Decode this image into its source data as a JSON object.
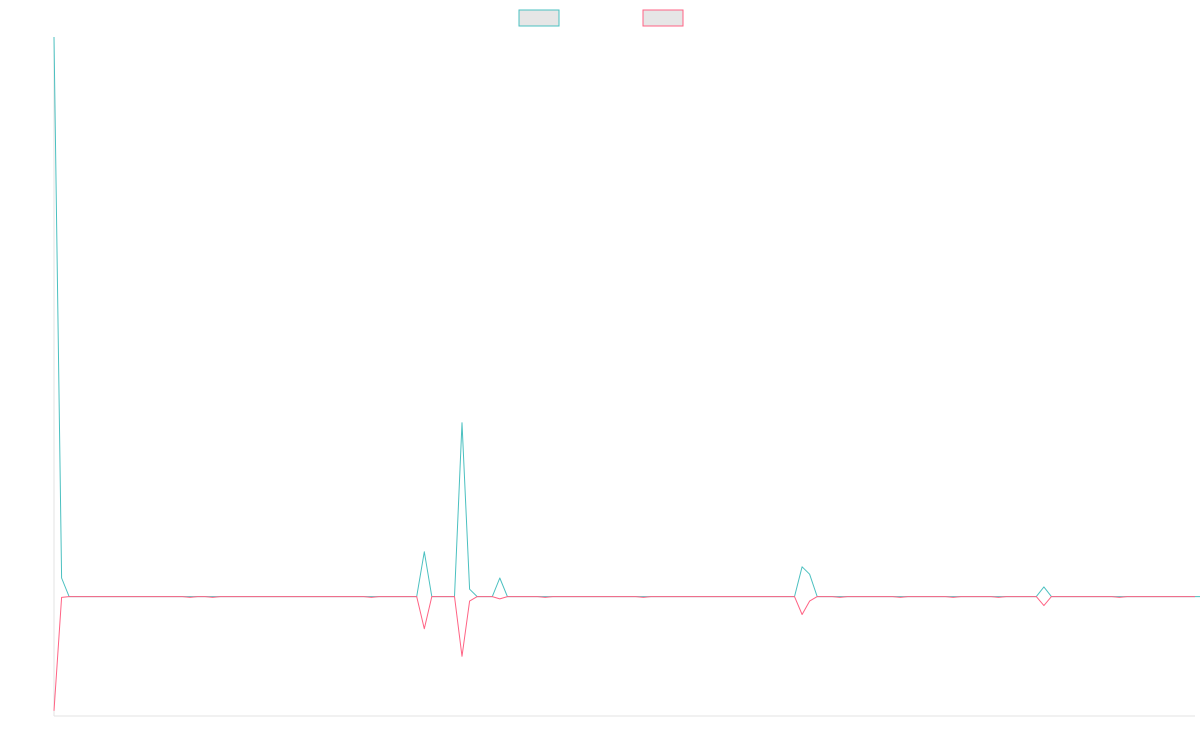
{
  "chart_data": {
    "type": "line",
    "title": "",
    "xlabel": "",
    "ylabel": "",
    "grid": false,
    "legend_position": "top-center",
    "ylim": [
      -16,
      75
    ],
    "x_count": 152,
    "series": [
      {
        "name": "",
        "color": "#4bc0c0",
        "fill": "#e6e6e6",
        "values": [
          75,
          2.5,
          0,
          0,
          0,
          0,
          0,
          0,
          0,
          0,
          0,
          0,
          0,
          0,
          0,
          0,
          0,
          0,
          0,
          0,
          0,
          0,
          0,
          0,
          0,
          0,
          0,
          0,
          0,
          0,
          0,
          0,
          0,
          0,
          0,
          0,
          0,
          0,
          0,
          0,
          0,
          0,
          0,
          0,
          0,
          0,
          0,
          0,
          0,
          6,
          0,
          0,
          0,
          0,
          23.3,
          1,
          0,
          0,
          0,
          2.5,
          0,
          0,
          0,
          0,
          0,
          0,
          0,
          0,
          0,
          0,
          0,
          0,
          0,
          0,
          0,
          0,
          0,
          0,
          0,
          0,
          0,
          0,
          0,
          0,
          0,
          0,
          0,
          0,
          0,
          0,
          0,
          0,
          0,
          0,
          0,
          0,
          0,
          0,
          0,
          4,
          3,
          0,
          0,
          0,
          0,
          0,
          0,
          0,
          0,
          0,
          0,
          0,
          0,
          0,
          0,
          0,
          0,
          0,
          0,
          0,
          0,
          0,
          0,
          0,
          0,
          0,
          0,
          0,
          0,
          0,
          0,
          1.3,
          0,
          0,
          0,
          0,
          0,
          0,
          0,
          0,
          0,
          0,
          0,
          0,
          0,
          0,
          0,
          0,
          0,
          0,
          0,
          0,
          0,
          0
        ]
      },
      {
        "name": "",
        "color": "#ff6384",
        "fill": "#e6e6e6",
        "values": [
          -15.3,
          -0.1,
          0,
          0,
          0,
          0,
          0,
          0,
          0,
          0,
          0,
          0,
          0,
          0,
          0,
          0,
          0,
          0,
          -0.1,
          0,
          0,
          -0.1,
          0,
          0,
          0,
          0,
          0,
          0,
          0,
          0,
          0,
          0,
          0,
          0,
          0,
          0,
          0,
          0,
          0,
          0,
          0,
          0,
          -0.1,
          0,
          0,
          0,
          0,
          0,
          0,
          -4.3,
          0,
          0,
          0,
          0,
          -8,
          -0.6,
          0,
          0,
          0,
          -0.3,
          0,
          0,
          0,
          0,
          0,
          -0.1,
          0,
          0,
          0,
          0,
          0,
          0,
          0,
          0,
          0,
          0,
          0,
          0,
          -0.1,
          0,
          0,
          0,
          0,
          0,
          0,
          0,
          0,
          0,
          0,
          0,
          0,
          0,
          0,
          0,
          0,
          0,
          0,
          0,
          0,
          -2.4,
          -0.6,
          0,
          0,
          0,
          -0.1,
          0,
          0,
          0,
          0,
          0,
          0,
          0,
          -0.1,
          0,
          0,
          0,
          0,
          0,
          0,
          -0.1,
          0,
          0,
          0,
          0,
          0,
          -0.1,
          0,
          0,
          0,
          0,
          0,
          -1.2,
          0,
          0,
          0,
          0,
          0,
          0,
          0,
          0,
          0,
          -0.1,
          0,
          0,
          0,
          0,
          0,
          0,
          0,
          0,
          0,
          0
        ]
      }
    ]
  }
}
